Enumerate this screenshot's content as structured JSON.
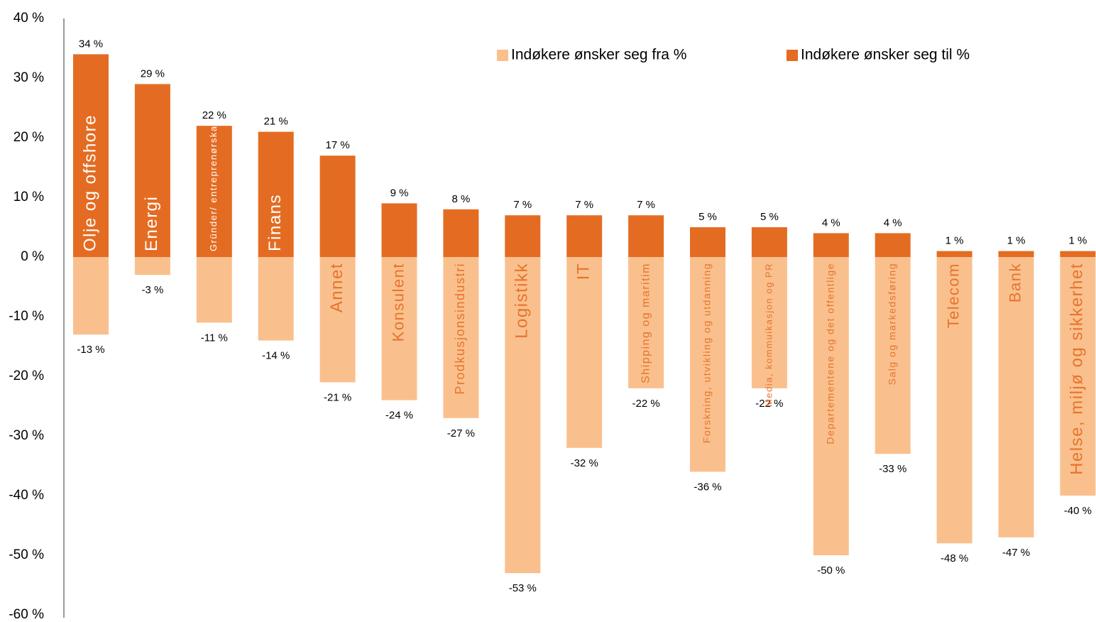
{
  "chart_data": {
    "type": "bar",
    "categories": [
      "Olje og offshore",
      "Energi",
      "Gründer/ entreprenørskap",
      "Finans",
      "Annet",
      "Konsulent",
      "Prodkusjonsindustri",
      "Logistikk",
      "IT",
      "Shipping og maritim",
      "Forskning, utvikling og utdanning",
      "Media, kommuikasjon og PR",
      "Departementene og det offentlige",
      "Salg og markedsføring",
      "Telecom",
      "Bank",
      "Helse, miljø og sikkerhet"
    ],
    "series": [
      {
        "name": "Indøkere ønsker seg fra %",
        "color": "#f9c08e",
        "values": [
          -13,
          -3,
          -11,
          -14,
          -21,
          -24,
          -27,
          -53,
          -32,
          -22,
          -36,
          -22,
          -50,
          -33,
          -48,
          -47,
          -40
        ],
        "value_labels": [
          "-13 %",
          "-3 %",
          "-11 %",
          "-14 %",
          "-21 %",
          "-24 %",
          "-27 %",
          "-53 %",
          "-32 %",
          "-22 %",
          "-36 %",
          "-22 %",
          "-50 %",
          "-33 %",
          "-48 %",
          "-47 %",
          "-40 %"
        ]
      },
      {
        "name": "Indøkere ønsker seg til %",
        "color": "#e46c22",
        "values": [
          34,
          29,
          22,
          21,
          17,
          9,
          8,
          7,
          7,
          7,
          5,
          5,
          4,
          4,
          1,
          1,
          1
        ],
        "value_labels": [
          "34 %",
          "29 %",
          "22 %",
          "21 %",
          "17 %",
          "9 %",
          "8 %",
          "7 %",
          "7 %",
          "7 %",
          "5 %",
          "5 %",
          "4 %",
          "4 %",
          "1 %",
          "1 %",
          "1 %"
        ]
      }
    ],
    "ylim": [
      -60,
      40
    ],
    "yticks": [
      {
        "value": -60,
        "label": "-60 %"
      },
      {
        "value": -50,
        "label": "-50 %"
      },
      {
        "value": -40,
        "label": "-40 %"
      },
      {
        "value": -30,
        "label": "-30 %"
      },
      {
        "value": -20,
        "label": "-20 %"
      },
      {
        "value": -10,
        "label": "-10 %"
      },
      {
        "value": 0,
        "label": "0 %"
      },
      {
        "value": 10,
        "label": "10 %"
      },
      {
        "value": 20,
        "label": "20 %"
      },
      {
        "value": 30,
        "label": "30 %"
      },
      {
        "value": 40,
        "label": "40 %"
      }
    ],
    "label_color": "#e8732a"
  }
}
